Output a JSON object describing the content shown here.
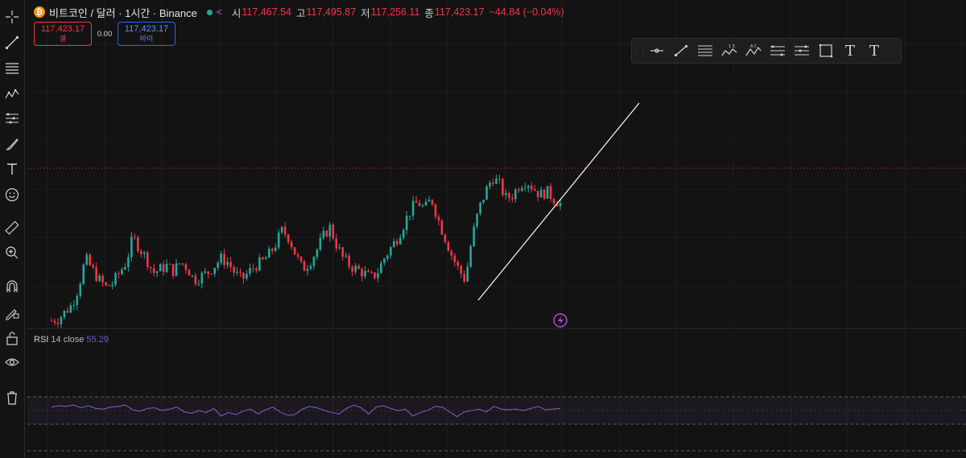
{
  "legend": {
    "coin_symbol": "₿",
    "title": "비트코인 / 달러 · 1시간 · Binance",
    "open_label": "시",
    "open": "117,467.54",
    "high_label": "고",
    "high": "117,495.87",
    "low_label": "저",
    "low": "117,256.11",
    "close_label": "종",
    "close": "117,423.17",
    "change": "−44.84 (−0.04%)"
  },
  "trade": {
    "sell_price": "117,423.17",
    "sell_label": "셀",
    "spread": "0.00",
    "buy_price": "117,423.17",
    "buy_label": "바이"
  },
  "rsi": {
    "name": "RSI",
    "params": "14 close",
    "value": "55.29"
  },
  "colors": {
    "up": "#26a69a",
    "down": "#f23645",
    "rsi": "#7e57c2",
    "price_line": "#f23645",
    "trend": "#ffffff"
  },
  "left_tools": [
    "crosshair-icon",
    "trend-line-icon",
    "fib-lines-icon",
    "pattern-icon",
    "projection-icon",
    "brush-icon",
    "text-icon",
    "emoji-icon",
    "ruler-icon",
    "zoom-icon",
    "magnet-icon",
    "lock-drawing-icon",
    "lock-icon",
    "eye-icon",
    "trash-icon"
  ],
  "float_tools": [
    "horizontal-ray-icon",
    "line-icon",
    "parallel-lines-icon",
    "xabcd-icon",
    "abcd-icon",
    "fib-retracement-icon",
    "fib-extension-icon",
    "rectangle-icon",
    "text-tool-icon",
    "text-anchored-icon"
  ],
  "float_labels": {
    "pattern_top": "1 5",
    "abcd_top": "A C",
    "text": "T",
    "text_anchored": "T"
  },
  "chart_data": {
    "type": "candlestick",
    "price_series": [
      0.03,
      0.04,
      0.08,
      0.12,
      0.22,
      0.38,
      0.32,
      0.26,
      0.22,
      0.24,
      0.3,
      0.36,
      0.5,
      0.44,
      0.38,
      0.3,
      0.32,
      0.34,
      0.31,
      0.36,
      0.33,
      0.26,
      0.28,
      0.3,
      0.34,
      0.38,
      0.36,
      0.3,
      0.26,
      0.3,
      0.34,
      0.36,
      0.4,
      0.46,
      0.54,
      0.5,
      0.4,
      0.32,
      0.36,
      0.42,
      0.5,
      0.56,
      0.46,
      0.38,
      0.34,
      0.32,
      0.3,
      0.27,
      0.3,
      0.38,
      0.44,
      0.5,
      0.58,
      0.66,
      0.7,
      0.66,
      0.72,
      0.6,
      0.5,
      0.4,
      0.32,
      0.26,
      0.5,
      0.66,
      0.76,
      0.84,
      0.8,
      0.72,
      0.74,
      0.8,
      0.82,
      0.78,
      0.74,
      0.76,
      0.72,
      0.69
    ],
    "rsi_series": [
      55,
      57,
      56,
      58,
      54,
      57,
      53,
      52,
      55,
      56,
      58,
      51,
      49,
      53,
      54,
      50,
      52,
      55,
      48,
      46,
      50,
      47,
      53,
      42,
      47,
      44,
      49,
      52,
      45,
      51,
      55,
      48,
      43,
      44,
      52,
      56,
      54,
      50,
      47,
      45,
      53,
      58,
      54,
      45,
      55,
      57,
      53,
      50,
      52,
      42,
      47,
      50,
      56,
      55,
      48,
      41,
      48,
      50,
      52,
      48,
      56,
      52,
      51,
      52,
      50,
      53,
      56,
      51,
      52,
      53
    ],
    "rsi_bands": [
      70,
      50,
      30
    ]
  }
}
